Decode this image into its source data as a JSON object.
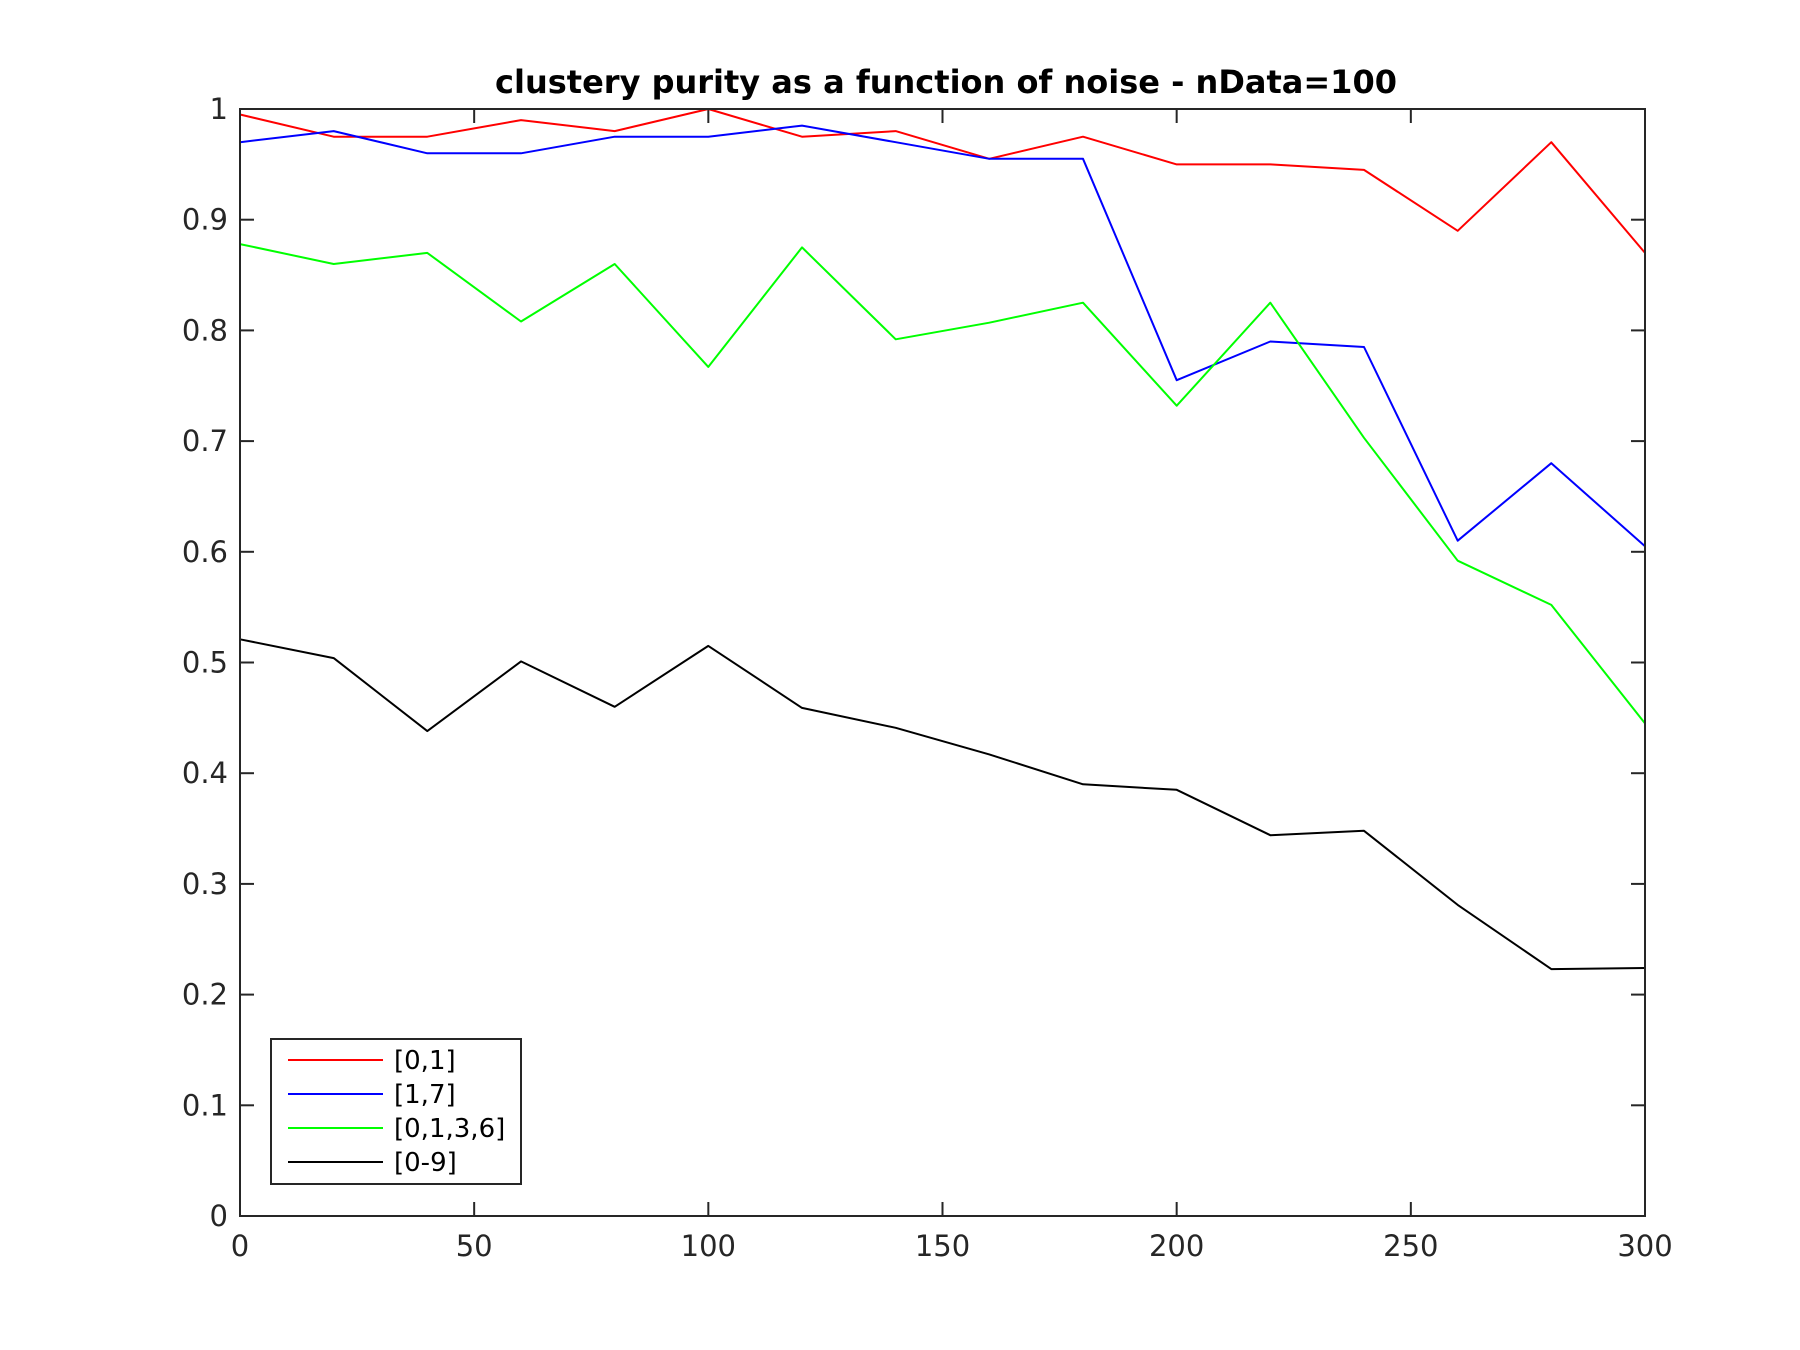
{
  "chart_data": {
    "type": "line",
    "title": "clustery purity as a function of noise - nData=100",
    "xlabel": "",
    "ylabel": "",
    "xlim": [
      0,
      300
    ],
    "ylim": [
      0,
      1
    ],
    "xticks": [
      0,
      50,
      100,
      150,
      200,
      250,
      300
    ],
    "yticks": [
      0,
      0.1,
      0.2,
      0.3,
      0.4,
      0.5,
      0.6,
      0.7,
      0.8,
      0.9,
      1
    ],
    "x_tick_labels": [
      "0",
      "50",
      "100",
      "150",
      "200",
      "250",
      "300"
    ],
    "y_tick_labels": [
      "0",
      "0.1",
      "0.2",
      "0.3",
      "0.4",
      "0.5",
      "0.6",
      "0.7",
      "0.8",
      "0.9",
      "1"
    ],
    "grid": false,
    "legend_position": "bottom-left",
    "x": [
      0,
      20,
      40,
      60,
      80,
      100,
      120,
      140,
      160,
      180,
      200,
      220,
      240,
      260,
      280,
      300
    ],
    "series": [
      {
        "name": "[0,1]",
        "color": "#ff0000",
        "values": [
          0.995,
          0.975,
          0.975,
          0.99,
          0.98,
          1.0,
          0.975,
          0.98,
          0.955,
          0.975,
          0.95,
          0.95,
          0.945,
          0.89,
          0.97,
          0.87
        ]
      },
      {
        "name": "[1,7]",
        "color": "#0000ff",
        "values": [
          0.97,
          0.98,
          0.96,
          0.96,
          0.975,
          0.975,
          0.985,
          0.97,
          0.955,
          0.955,
          0.755,
          0.79,
          0.785,
          0.61,
          0.68,
          0.605
        ]
      },
      {
        "name": "[0,1,3,6]",
        "color": "#00ff00",
        "values": [
          0.878,
          0.86,
          0.87,
          0.808,
          0.86,
          0.767,
          0.875,
          0.792,
          0.807,
          0.825,
          0.732,
          0.825,
          0.703,
          0.592,
          0.552,
          0.445
        ]
      },
      {
        "name": "[0-9]",
        "color": "#000000",
        "values": [
          0.521,
          0.504,
          0.438,
          0.501,
          0.46,
          0.515,
          0.459,
          0.441,
          0.417,
          0.39,
          0.385,
          0.344,
          0.348,
          0.281,
          0.223,
          0.224
        ]
      }
    ]
  }
}
